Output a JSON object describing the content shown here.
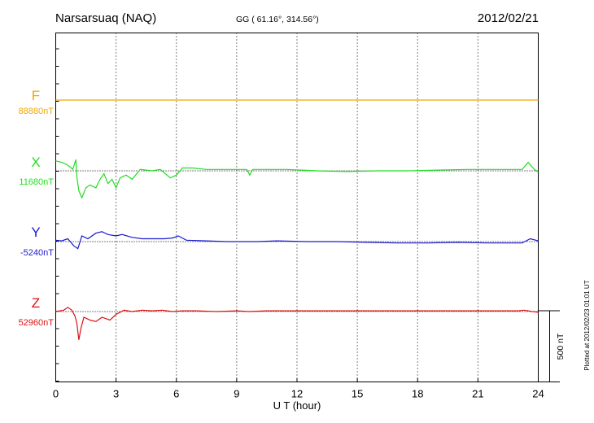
{
  "header": {
    "station": "Narsarsuaq (NAQ)",
    "coords": "GG ( 61.16°, 314.56°)",
    "date": "2012/02/21"
  },
  "footer": {
    "plotted": "Plotted at 2012/02/23 01:01  UT",
    "scale_label": "500 nT"
  },
  "chart_data": {
    "type": "line",
    "title": "Narsarsuaq (NAQ)",
    "xlabel": "U T (hour)",
    "ylabel": "",
    "xlim": [
      0,
      24
    ],
    "xticks": [
      0,
      3,
      6,
      9,
      12,
      15,
      18,
      21,
      24
    ],
    "scale_bar_nT": 500,
    "grid": "dotted vertical at every 3 hours",
    "series": [
      {
        "name": "F",
        "color": "#f0a800",
        "baseline_label": "88880nT",
        "points": [
          [
            0,
            0
          ],
          [
            24,
            0
          ]
        ]
      },
      {
        "name": "X",
        "color": "#22dd22",
        "baseline_label": "11680nT",
        "points": [
          [
            0,
            70
          ],
          [
            0.3,
            60
          ],
          [
            0.6,
            40
          ],
          [
            0.85,
            10
          ],
          [
            1.0,
            80
          ],
          [
            1.05,
            -40
          ],
          [
            1.15,
            -140
          ],
          [
            1.3,
            -190
          ],
          [
            1.5,
            -120
          ],
          [
            1.7,
            -100
          ],
          [
            2.0,
            -120
          ],
          [
            2.2,
            -60
          ],
          [
            2.4,
            -20
          ],
          [
            2.6,
            -90
          ],
          [
            2.8,
            -60
          ],
          [
            3.0,
            -120
          ],
          [
            3.2,
            -50
          ],
          [
            3.5,
            -30
          ],
          [
            3.8,
            -60
          ],
          [
            4.2,
            10
          ],
          [
            4.8,
            0
          ],
          [
            5.2,
            10
          ],
          [
            5.7,
            -50
          ],
          [
            6.0,
            -30
          ],
          [
            6.3,
            20
          ],
          [
            6.8,
            20
          ],
          [
            7.5,
            10
          ],
          [
            8.5,
            10
          ],
          [
            9.5,
            10
          ],
          [
            9.65,
            -30
          ],
          [
            9.8,
            10
          ],
          [
            10.5,
            10
          ],
          [
            11.5,
            10
          ],
          [
            13,
            0
          ],
          [
            14.5,
            -5
          ],
          [
            16,
            0
          ],
          [
            17.5,
            0
          ],
          [
            19,
            5
          ],
          [
            20.5,
            10
          ],
          [
            22,
            10
          ],
          [
            23.2,
            10
          ],
          [
            23.5,
            60
          ],
          [
            23.8,
            10
          ],
          [
            24,
            -10
          ]
        ]
      },
      {
        "name": "Y",
        "color": "#1a1acc",
        "baseline_label": "-5240nT",
        "points": [
          [
            0,
            10
          ],
          [
            0.3,
            5
          ],
          [
            0.6,
            20
          ],
          [
            0.9,
            -30
          ],
          [
            1.1,
            -50
          ],
          [
            1.3,
            40
          ],
          [
            1.6,
            20
          ],
          [
            2.0,
            60
          ],
          [
            2.3,
            70
          ],
          [
            2.6,
            50
          ],
          [
            3.0,
            40
          ],
          [
            3.3,
            50
          ],
          [
            3.8,
            30
          ],
          [
            4.3,
            20
          ],
          [
            4.8,
            20
          ],
          [
            5.4,
            20
          ],
          [
            5.8,
            25
          ],
          [
            6.1,
            40
          ],
          [
            6.5,
            10
          ],
          [
            7.5,
            5
          ],
          [
            8.5,
            0
          ],
          [
            10,
            0
          ],
          [
            11,
            5
          ],
          [
            12.5,
            0
          ],
          [
            14,
            0
          ],
          [
            15.5,
            -5
          ],
          [
            17,
            -10
          ],
          [
            18.5,
            -10
          ],
          [
            20,
            -5
          ],
          [
            21.5,
            -10
          ],
          [
            23.2,
            -10
          ],
          [
            23.6,
            20
          ],
          [
            24,
            5
          ]
        ]
      },
      {
        "name": "Z",
        "color": "#dd1111",
        "baseline_label": "52960nT",
        "points": [
          [
            0,
            0
          ],
          [
            0.4,
            10
          ],
          [
            0.6,
            30
          ],
          [
            0.8,
            10
          ],
          [
            0.95,
            -30
          ],
          [
            1.05,
            -80
          ],
          [
            1.15,
            -200
          ],
          [
            1.25,
            -120
          ],
          [
            1.4,
            -40
          ],
          [
            1.7,
            -60
          ],
          [
            2.0,
            -70
          ],
          [
            2.3,
            -40
          ],
          [
            2.7,
            -60
          ],
          [
            3.0,
            -20
          ],
          [
            3.4,
            10
          ],
          [
            3.8,
            0
          ],
          [
            4.3,
            10
          ],
          [
            4.8,
            5
          ],
          [
            5.3,
            10
          ],
          [
            5.8,
            0
          ],
          [
            6.3,
            5
          ],
          [
            7,
            5
          ],
          [
            8,
            0
          ],
          [
            9,
            5
          ],
          [
            9.6,
            0
          ],
          [
            10.5,
            5
          ],
          [
            12,
            5
          ],
          [
            13.5,
            5
          ],
          [
            15,
            5
          ],
          [
            17,
            5
          ],
          [
            19,
            5
          ],
          [
            21,
            5
          ],
          [
            23,
            5
          ],
          [
            23.3,
            10
          ],
          [
            23.7,
            0
          ],
          [
            24,
            -5
          ]
        ]
      }
    ]
  }
}
